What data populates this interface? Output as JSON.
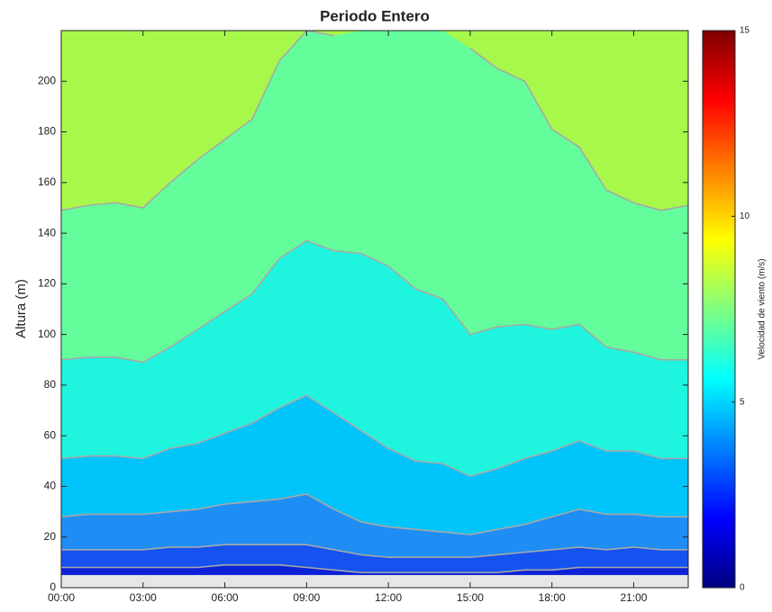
{
  "chart_data": {
    "type": "contour",
    "title": "Periodo Entero",
    "y_label": "Altura (m)",
    "x": [
      0,
      1,
      2,
      3,
      4,
      5,
      6,
      7,
      8,
      9,
      10,
      11,
      12,
      13,
      14,
      15,
      16,
      17,
      18,
      19,
      20,
      21,
      22,
      23
    ],
    "levels": [
      {
        "values": [
          8,
          8,
          8,
          8,
          8,
          8,
          9,
          9,
          9,
          8,
          7,
          6,
          6,
          6,
          6,
          6,
          6,
          7,
          7,
          8,
          8,
          8,
          8,
          8
        ]
      },
      {
        "values": [
          15,
          15,
          15,
          15,
          16,
          16,
          17,
          17,
          17,
          17,
          15,
          13,
          12,
          12,
          12,
          12,
          13,
          14,
          15,
          16,
          15,
          16,
          15,
          15
        ]
      },
      {
        "values": [
          28,
          29,
          29,
          29,
          30,
          31,
          33,
          34,
          35,
          37,
          31,
          26,
          24,
          23,
          22,
          21,
          23,
          25,
          28,
          31,
          29,
          29,
          28,
          28
        ]
      },
      {
        "values": [
          51,
          52,
          52,
          51,
          55,
          57,
          61,
          65,
          71,
          76,
          69,
          62,
          55,
          50,
          49,
          44,
          47,
          51,
          54,
          58,
          54,
          54,
          51,
          51
        ]
      },
      {
        "values": [
          90,
          91,
          91,
          89,
          95,
          102,
          109,
          116,
          130,
          137,
          133,
          132,
          127,
          118,
          114,
          100,
          103,
          104,
          102,
          104,
          95,
          93,
          90,
          90
        ]
      },
      {
        "values": [
          149,
          151,
          152,
          150,
          160,
          169,
          177,
          185,
          208,
          220,
          218,
          null,
          null,
          null,
          null,
          213,
          205,
          200,
          181,
          174,
          157,
          152,
          149,
          151
        ]
      }
    ],
    "fill_colors": [
      "#0d22d8",
      "#1552f0",
      "#1e8ef5",
      "#00c4fa",
      "#1ff5de",
      "#63fd9c",
      "#a7f84b"
    ],
    "line_color": "#a8a8a8",
    "mask_below": 5,
    "mask_color": "#e6e6e6",
    "xlim": [
      0,
      23
    ],
    "ylim": [
      0,
      220
    ],
    "xticks": [
      {
        "value": 0,
        "label": "00:00"
      },
      {
        "value": 3,
        "label": "03:00"
      },
      {
        "value": 6,
        "label": "06:00"
      },
      {
        "value": 9,
        "label": "09:00"
      },
      {
        "value": 12,
        "label": "12:00"
      },
      {
        "value": 15,
        "label": "15:00"
      },
      {
        "value": 18,
        "label": "18:00"
      },
      {
        "value": 21,
        "label": "21:00"
      }
    ],
    "yticks": [
      0,
      20,
      40,
      60,
      80,
      100,
      120,
      140,
      160,
      180,
      200
    ],
    "colorbar": {
      "label": "Velocidad de viento (m/s)",
      "colormap": "jet",
      "lim": [
        0,
        15
      ],
      "ticks": [
        0,
        5,
        10,
        15
      ]
    }
  }
}
